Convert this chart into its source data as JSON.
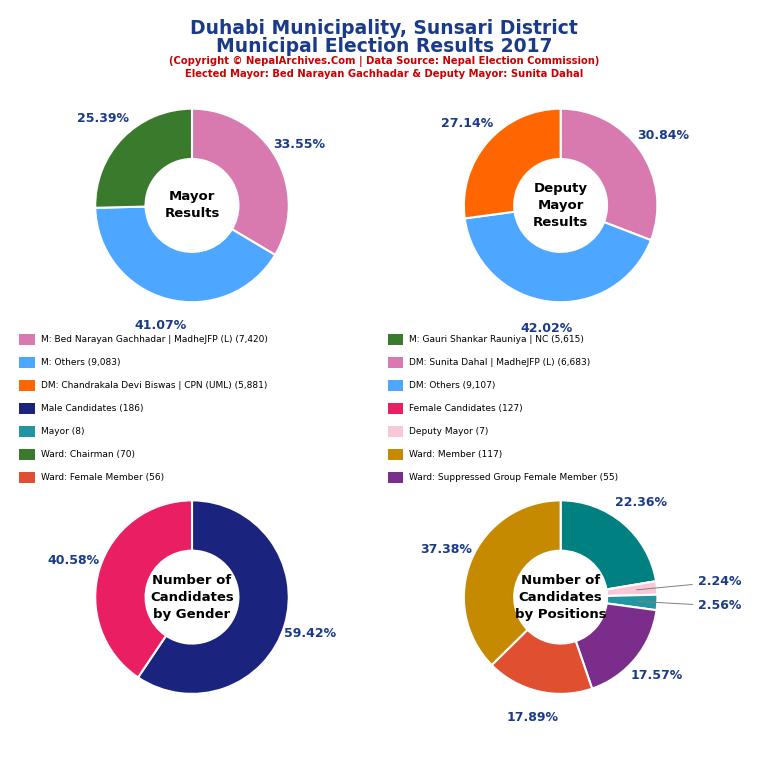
{
  "title_line1": "Duhabi Municipality, Sunsari District",
  "title_line2": "Municipal Election Results 2017",
  "subtitle1": "(Copyright © NepalArchives.Com | Data Source: Nepal Election Commission)",
  "subtitle2": "Elected Mayor: Bed Narayan Gachhadar & Deputy Mayor: Sunita Dahal",
  "title_color": "#1a3a8a",
  "subtitle_color": "#cc0000",
  "mayor_values": [
    33.55,
    41.07,
    25.39
  ],
  "mayor_colors": [
    "#d87ab0",
    "#4da6ff",
    "#3a7a2c"
  ],
  "mayor_labels": [
    "33.55%",
    "41.07%",
    "25.39%"
  ],
  "mayor_label_colors": [
    "#1a3a8a",
    "#1a3a8a",
    "#1a3a8a"
  ],
  "mayor_center_text": "Mayor\nResults",
  "deputy_values": [
    30.84,
    42.02,
    27.14
  ],
  "deputy_colors": [
    "#d87ab0",
    "#4da6ff",
    "#ff6600"
  ],
  "deputy_labels": [
    "30.84%",
    "42.02%",
    "27.14%"
  ],
  "deputy_label_colors": [
    "#1a3a8a",
    "#1a3a8a",
    "#1a3a8a"
  ],
  "deputy_center_text": "Deputy\nMayor\nResults",
  "gender_values": [
    59.42,
    40.58
  ],
  "gender_colors": [
    "#1a237e",
    "#e91e63"
  ],
  "gender_labels": [
    "59.42%",
    "40.58%"
  ],
  "gender_label_colors": [
    "#1a3a8a",
    "#1a3a8a"
  ],
  "gender_center_text": "Number of\nCandidates\nby Gender",
  "positions_values": [
    22.36,
    2.24,
    2.56,
    17.57,
    17.89,
    37.38
  ],
  "positions_colors": [
    "#008080",
    "#f8c8d8",
    "#2196a0",
    "#7b2d8b",
    "#e05030",
    "#c68a00"
  ],
  "positions_labels": [
    "22.36%",
    "2.24%",
    "2.56%",
    "17.57%",
    "17.89%",
    "37.38%"
  ],
  "positions_label_colors": [
    "#1a3a8a",
    "#1a3a8a",
    "#1a3a8a",
    "#1a3a8a",
    "#1a3a8a",
    "#1a3a8a"
  ],
  "positions_center_text": "Number of\nCandidates\nby Positions",
  "legend_items_left": [
    {
      "label": "M: Bed Narayan Gachhadar | MadheJFP (L) (7,420)",
      "color": "#d87ab0"
    },
    {
      "label": "M: Others (9,083)",
      "color": "#4da6ff"
    },
    {
      "label": "DM: Chandrakala Devi Biswas | CPN (UML) (5,881)",
      "color": "#ff6600"
    },
    {
      "label": "Male Candidates (186)",
      "color": "#1a237e"
    },
    {
      "label": "Mayor (8)",
      "color": "#2196a0"
    },
    {
      "label": "Ward: Chairman (70)",
      "color": "#3a7a2c"
    },
    {
      "label": "Ward: Female Member (56)",
      "color": "#e05030"
    }
  ],
  "legend_items_right": [
    {
      "label": "M: Gauri Shankar Rauniya | NC (5,615)",
      "color": "#3a7a2c"
    },
    {
      "label": "DM: Sunita Dahal | MadheJFP (L) (6,683)",
      "color": "#d87ab0"
    },
    {
      "label": "DM: Others (9,107)",
      "color": "#4da6ff"
    },
    {
      "label": "Female Candidates (127)",
      "color": "#e91e63"
    },
    {
      "label": "Deputy Mayor (7)",
      "color": "#f8c8d8"
    },
    {
      "label": "Ward: Member (117)",
      "color": "#c68a00"
    },
    {
      "label": "Ward: Suppressed Group Female Member (55)",
      "color": "#7b2d8b"
    }
  ]
}
